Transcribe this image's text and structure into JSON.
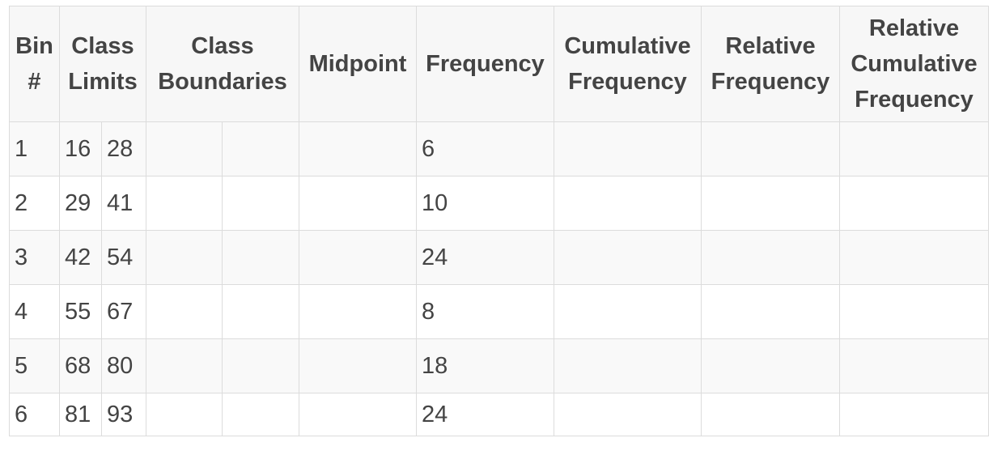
{
  "table": {
    "headers": {
      "bin": [
        "Bin",
        "#"
      ],
      "class_limits": [
        "Class",
        "Limits"
      ],
      "class_boundaries": [
        "Class",
        "Boundaries"
      ],
      "midpoint": [
        "Midpoint"
      ],
      "frequency": [
        "Frequency"
      ],
      "cumulative_frequency": [
        "Cumulative",
        "Frequency"
      ],
      "relative_frequency": [
        "Relative",
        "Frequency"
      ],
      "relative_cumulative_frequency": [
        "Relative",
        "Cumulative",
        "Frequency"
      ]
    },
    "rows": [
      {
        "bin": "1",
        "lower": "16",
        "upper": "28",
        "frequency": "6"
      },
      {
        "bin": "2",
        "lower": "29",
        "upper": "41",
        "frequency": "10"
      },
      {
        "bin": "3",
        "lower": "42",
        "upper": "54",
        "frequency": "24"
      },
      {
        "bin": "4",
        "lower": "55",
        "upper": "67",
        "frequency": "8"
      },
      {
        "bin": "5",
        "lower": "68",
        "upper": "80",
        "frequency": "18"
      },
      {
        "bin": "6",
        "lower": "81",
        "upper": "93",
        "frequency": "24"
      }
    ]
  }
}
